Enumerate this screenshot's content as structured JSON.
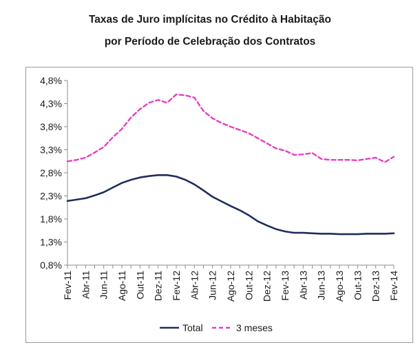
{
  "chart_data": {
    "type": "line",
    "title": "Taxas de Juro implícitas no Crédito à Habitação",
    "subtitle": "por Período de Celebração dos Contratos",
    "xlabel": "",
    "ylabel": "",
    "ylim": [
      0.8,
      4.8
    ],
    "yticks": [
      "4,8%",
      "4,3%",
      "3,8%",
      "3,3%",
      "2,8%",
      "2,3%",
      "1,8%",
      "1,3%",
      "0,8%"
    ],
    "ytick_values": [
      4.8,
      4.3,
      3.8,
      3.3,
      2.8,
      2.3,
      1.8,
      1.3,
      0.8
    ],
    "xtick_labels": [
      "Fev-11",
      "Abr-11",
      "Jun-11",
      "Ago-11",
      "Out-11",
      "Dez-11",
      "Fev-12",
      "Abr-12",
      "Jun-12",
      "Ago-12",
      "Out-12",
      "Dez-12",
      "Fev-13",
      "Abr-13",
      "Jun-13",
      "Ago-13",
      "Out-13",
      "Dez-13",
      "Fev-14"
    ],
    "categories": [
      "Fev-11",
      "Mar-11",
      "Abr-11",
      "Mai-11",
      "Jun-11",
      "Jul-11",
      "Ago-11",
      "Set-11",
      "Out-11",
      "Nov-11",
      "Dez-11",
      "Jan-12",
      "Fev-12",
      "Mar-12",
      "Abr-12",
      "Mai-12",
      "Jun-12",
      "Jul-12",
      "Ago-12",
      "Set-12",
      "Out-12",
      "Nov-12",
      "Dez-12",
      "Jan-13",
      "Fev-13",
      "Mar-13",
      "Abr-13",
      "Mai-13",
      "Jun-13",
      "Jul-13",
      "Ago-13",
      "Set-13",
      "Out-13",
      "Nov-13",
      "Dez-13",
      "Jan-14",
      "Fev-14"
    ],
    "series": [
      {
        "name": "Total",
        "color": "#1f2d5c",
        "dash": "solid",
        "values": [
          2.19,
          2.22,
          2.25,
          2.31,
          2.38,
          2.48,
          2.58,
          2.65,
          2.7,
          2.73,
          2.75,
          2.75,
          2.72,
          2.65,
          2.55,
          2.42,
          2.28,
          2.18,
          2.08,
          1.99,
          1.88,
          1.75,
          1.66,
          1.58,
          1.53,
          1.5,
          1.5,
          1.49,
          1.48,
          1.48,
          1.47,
          1.47,
          1.47,
          1.48,
          1.48,
          1.48,
          1.49
        ]
      },
      {
        "name": "3 meses",
        "color": "#e63fc0",
        "dash": "dashed",
        "values": [
          3.05,
          3.08,
          3.13,
          3.24,
          3.36,
          3.57,
          3.75,
          4.0,
          4.18,
          4.32,
          4.38,
          4.32,
          4.5,
          4.48,
          4.43,
          4.14,
          3.98,
          3.88,
          3.8,
          3.73,
          3.66,
          3.55,
          3.44,
          3.33,
          3.28,
          3.19,
          3.2,
          3.23,
          3.1,
          3.08,
          3.08,
          3.08,
          3.07,
          3.1,
          3.13,
          3.03,
          3.15
        ]
      }
    ],
    "legend": {
      "position": "bottom",
      "entries": [
        "Total",
        "3 meses"
      ]
    },
    "grid": false
  }
}
